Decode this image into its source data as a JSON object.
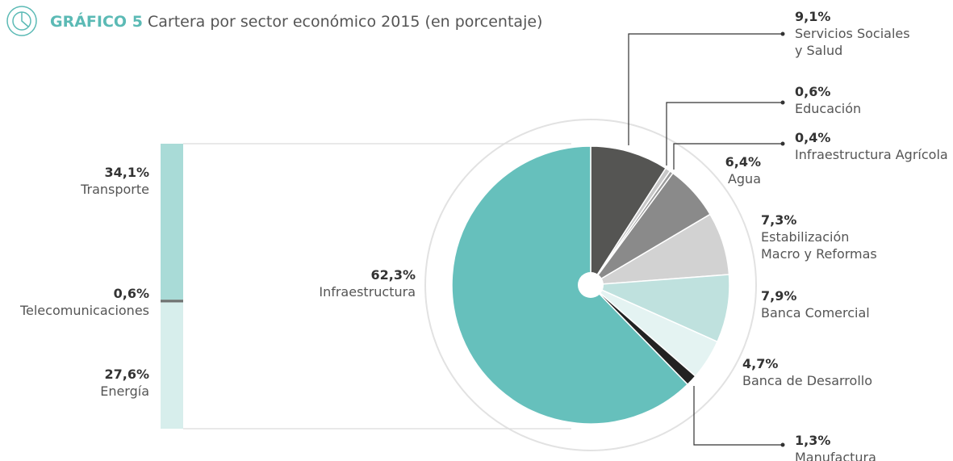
{
  "chart_data": {
    "type": "pie",
    "figure_label": "GRÁFICO 5",
    "title": "Cartera por sector económico 2015 (en porcentaje)",
    "categories": [
      "Servicios Sociales\ny Salud",
      "Educación",
      "Infraestructura Agrícola",
      "Agua",
      "Estabilización\nMacro y Reformas",
      "Banca Comercial",
      "Banca de Desarrollo",
      "Manufactura",
      "Infraestructura"
    ],
    "values": [
      9.1,
      0.6,
      0.4,
      6.4,
      7.3,
      7.9,
      4.7,
      1.3,
      62.3
    ],
    "value_labels": [
      "9,1%",
      "0,6%",
      "0,4%",
      "6,4%",
      "7,3%",
      "7,9%",
      "4,7%",
      "1,3%",
      "62,3%"
    ],
    "colors": [
      "#555553",
      "#c8c8c8",
      "#9a9a9a",
      "#8a8a8a",
      "#d2d2d2",
      "#bfe1de",
      "#e4f3f2",
      "#222222",
      "#66c0bc"
    ],
    "breakdown": {
      "categories": [
        "Transporte",
        "Telecomunicaciones",
        "Energía"
      ],
      "values": [
        34.1,
        0.6,
        27.6
      ],
      "value_labels": [
        "34,1%",
        "0,6%",
        "27,6%"
      ],
      "colors": [
        "#a9dbd7",
        "#6f7372",
        "#d7eeec"
      ]
    }
  }
}
